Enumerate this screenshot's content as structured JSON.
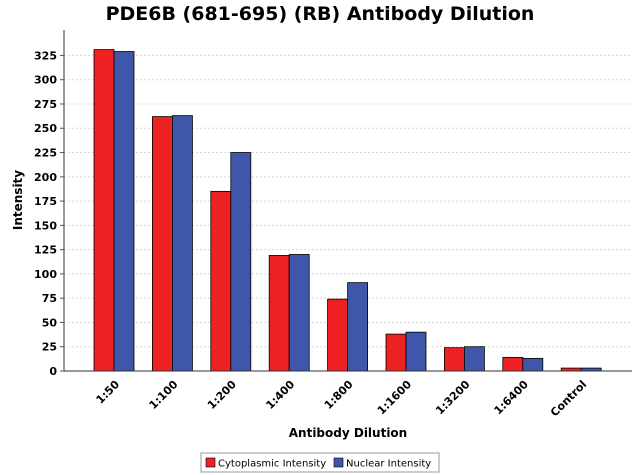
{
  "chart_data": {
    "type": "bar",
    "title": "PDE6B (681-695) (RB) Antibody Dilution",
    "xlabel": "Antibody Dilution",
    "ylabel": "Intensity",
    "categories": [
      "1:50",
      "1:100",
      "1:200",
      "1:400",
      "1:800",
      "1:1600",
      "1:3200",
      "1:6400",
      "Control"
    ],
    "series": [
      {
        "name": "Cytoplasmic Intensity",
        "color": "#ee2222",
        "values": [
          331,
          262,
          185,
          119,
          74,
          38,
          24,
          14,
          3
        ]
      },
      {
        "name": "Nuclear Intensity",
        "color": "#3f57aa",
        "values": [
          329,
          263,
          225,
          120,
          91,
          40,
          25,
          13,
          3
        ]
      }
    ],
    "ylim": [
      0,
      345
    ],
    "yticks": [
      0,
      25,
      50,
      75,
      100,
      125,
      150,
      175,
      200,
      225,
      250,
      275,
      300,
      325
    ],
    "grid": true,
    "legend_position": "bottom-center"
  }
}
